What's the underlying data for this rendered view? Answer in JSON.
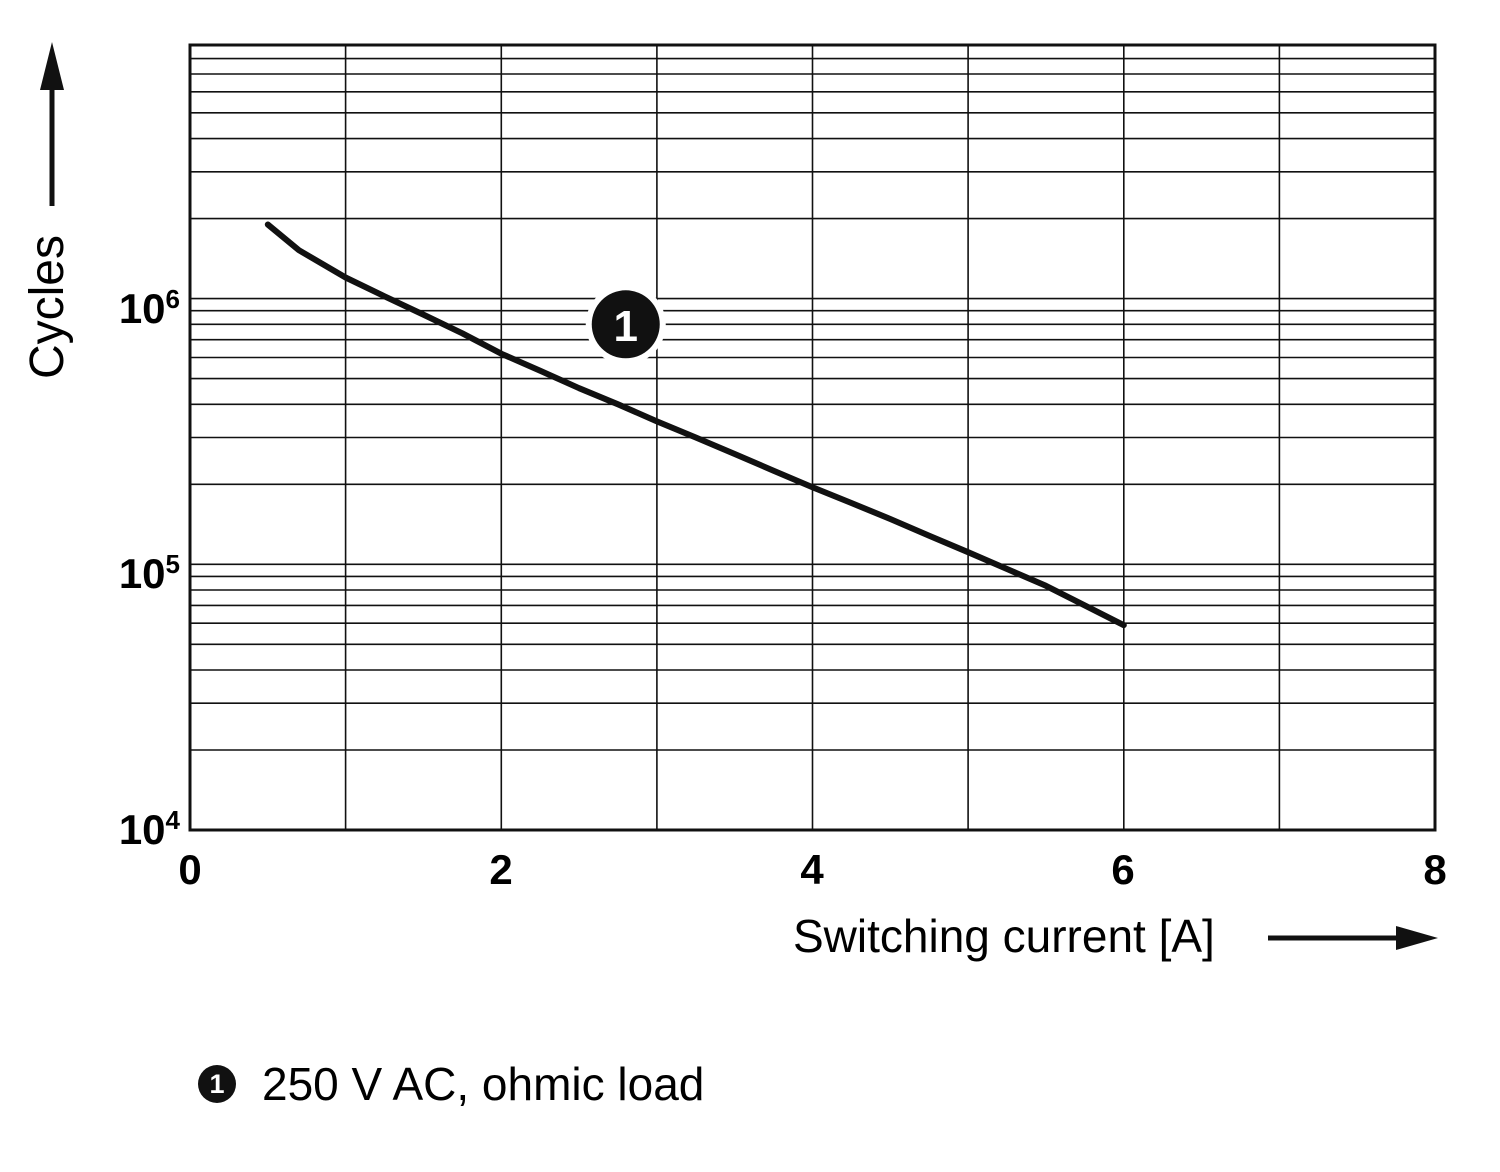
{
  "chart_data": {
    "type": "line",
    "title": "",
    "xlabel": "Switching current [A]",
    "ylabel": "Cycles",
    "xlim": [
      0,
      8
    ],
    "ylim": [
      10000,
      9000000
    ],
    "y_scale": "log",
    "x_grid_step": 1,
    "grid": true,
    "x_ticks": [
      {
        "value": 0,
        "label": "0"
      },
      {
        "value": 2,
        "label": "2"
      },
      {
        "value": 4,
        "label": "4"
      },
      {
        "value": 6,
        "label": "6"
      },
      {
        "value": 8,
        "label": "8"
      }
    ],
    "y_ticks": [
      {
        "value": 10000,
        "base": "10",
        "exp": "4"
      },
      {
        "value": 100000,
        "base": "10",
        "exp": "5"
      },
      {
        "value": 1000000,
        "base": "10",
        "exp": "6"
      }
    ],
    "series": [
      {
        "name": "1",
        "label": "250 V AC, ohmic load",
        "points": [
          [
            0.5,
            1900000
          ],
          [
            0.7,
            1520000
          ],
          [
            1.0,
            1200000
          ],
          [
            1.25,
            1020000
          ],
          [
            1.5,
            870000
          ],
          [
            1.75,
            740000
          ],
          [
            2.0,
            620000
          ],
          [
            2.25,
            535000
          ],
          [
            2.5,
            460000
          ],
          [
            2.75,
            400000
          ],
          [
            3.0,
            345000
          ],
          [
            3.25,
            300000
          ],
          [
            3.5,
            260000
          ],
          [
            3.75,
            225000
          ],
          [
            4.0,
            195000
          ],
          [
            4.25,
            170000
          ],
          [
            4.5,
            148000
          ],
          [
            4.75,
            128000
          ],
          [
            5.0,
            111000
          ],
          [
            5.25,
            96000
          ],
          [
            5.5,
            83000
          ],
          [
            5.75,
            70000
          ],
          [
            6.0,
            59000
          ]
        ]
      }
    ],
    "marker": {
      "label": "1",
      "x": 2.8,
      "y": 800000
    },
    "legend": [
      {
        "symbol": "1",
        "text": "250 V AC, ohmic load"
      }
    ]
  }
}
